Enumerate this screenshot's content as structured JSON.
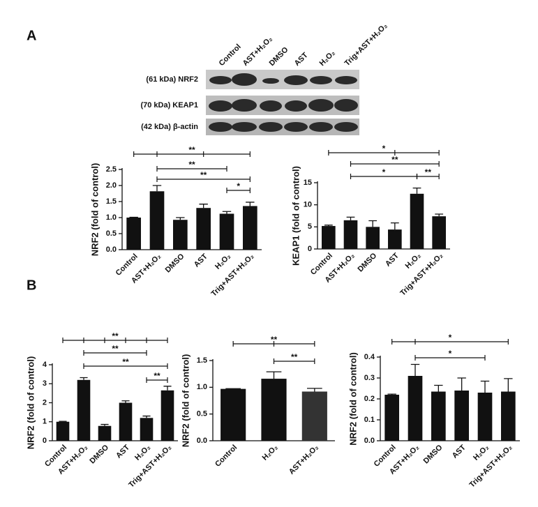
{
  "panel_labels": [
    "A",
    "B"
  ],
  "blot": {
    "lanes": [
      "Control",
      "AST+H₂O₂",
      "DMSO",
      "AST",
      "H₂O₂",
      "Trig+AST+H₂O₂"
    ],
    "rows": [
      "(61 kDa) NRF2",
      "(70 kDa) KEAP1",
      "(42 kDa) β-actin"
    ]
  },
  "chart_data": [
    {
      "type": "bar",
      "ylabel": "NRF2 (fold of control)",
      "color": "#111111",
      "categories": [
        "Control",
        "AST+H₂O₂",
        "DMSO",
        "AST",
        "H₂O₂",
        "Trig+AST+H₂O₂"
      ],
      "values": [
        1.0,
        1.82,
        0.93,
        1.3,
        1.12,
        1.36
      ],
      "errors": [
        0.01,
        0.18,
        0.07,
        0.12,
        0.07,
        0.12
      ],
      "ylim": [
        0,
        2.5
      ],
      "yticks": [
        {
          "value": 0,
          "label": "0.0"
        },
        {
          "value": 0.5,
          "label": "0.5"
        },
        {
          "value": 1,
          "label": "1.0"
        },
        {
          "value": 1.5,
          "label": "1.5"
        },
        {
          "value": 2,
          "label": "2.0"
        },
        {
          "value": 2.5,
          "label": "2.5"
        }
      ],
      "annotations": [
        {
          "text": "**",
          "between": [
            0,
            1,
            3,
            5
          ]
        },
        {
          "text": "**",
          "between": [
            1,
            4
          ]
        },
        {
          "text": "**",
          "between": [
            1,
            5
          ]
        },
        {
          "text": "*",
          "between": [
            4,
            5
          ]
        }
      ]
    },
    {
      "type": "bar",
      "ylabel": "KEAP1 (fold of control)",
      "color": "#111111",
      "categories": [
        "Control",
        "AST+H₂O₂",
        "DMSO",
        "AST",
        "H₂O₂",
        "Trig+AST+H₂O₂"
      ],
      "values": [
        5.2,
        6.5,
        5.0,
        4.4,
        12.5,
        7.4
      ],
      "errors": [
        0.2,
        0.7,
        1.4,
        1.5,
        1.3,
        0.5
      ],
      "ylim": [
        0,
        15
      ],
      "yticks": [
        0,
        5,
        10,
        15
      ],
      "annotations": [
        {
          "text": "*",
          "between": [
            0,
            3,
            5
          ]
        },
        {
          "text": "**",
          "between": [
            1,
            5
          ]
        },
        {
          "text": "*",
          "between": [
            1,
            4
          ]
        },
        {
          "text": "**",
          "between": [
            4,
            5
          ]
        }
      ]
    },
    {
      "type": "bar",
      "ylabel": "NRF2 (fold of control)",
      "color": "#111111",
      "categories": [
        "Control",
        "AST+H₂O₂",
        "DMSO",
        "AST",
        "H₂O₂",
        "Trig+AST+H₂O₂"
      ],
      "values": [
        1.0,
        3.2,
        0.78,
        2.0,
        1.2,
        2.65
      ],
      "errors": [
        0.02,
        0.12,
        0.08,
        0.1,
        0.1,
        0.22
      ],
      "ylim": [
        0,
        4
      ],
      "yticks": [
        0,
        1,
        2,
        3,
        4
      ],
      "annotations": [
        {
          "text": "**",
          "between": [
            0,
            1,
            2,
            3,
            4,
            5
          ]
        },
        {
          "text": "**",
          "between": [
            1,
            4
          ]
        },
        {
          "text": "**",
          "between": [
            1,
            5
          ]
        },
        {
          "text": "**",
          "between": [
            4,
            5
          ]
        }
      ]
    },
    {
      "type": "bar",
      "ylabel": "NRF2 (fold of control)",
      "colors": [
        "#111111",
        "#111111",
        "#333333"
      ],
      "categories": [
        "Control",
        "H₂O₂",
        "AST+H₂O₂"
      ],
      "values": [
        0.97,
        1.16,
        0.92
      ],
      "errors": [
        0.005,
        0.13,
        0.06
      ],
      "ylim": [
        0,
        1.5
      ],
      "yticks": [
        {
          "value": 0,
          "label": "0.0"
        },
        {
          "value": 0.5,
          "label": "0.5"
        },
        {
          "value": 1,
          "label": "1.0"
        },
        {
          "value": 1.5,
          "label": "1.5"
        }
      ],
      "annotations": [
        {
          "text": "**",
          "between": [
            0,
            1,
            2
          ]
        },
        {
          "text": "**",
          "between": [
            1,
            2
          ]
        }
      ]
    },
    {
      "type": "bar",
      "ylabel": "NRF2 (fold of control)",
      "color": "#111111",
      "categories": [
        "Control",
        "AST+H₂O₂",
        "DMSO",
        "AST",
        "H₂O₂",
        "Trig+AST+H₂O₂"
      ],
      "values": [
        0.22,
        0.31,
        0.235,
        0.24,
        0.23,
        0.235
      ],
      "errors": [
        0.003,
        0.055,
        0.03,
        0.06,
        0.055,
        0.062
      ],
      "ylim": [
        0,
        0.4
      ],
      "yticks": [
        {
          "value": 0,
          "label": "0.0"
        },
        0.1,
        0.2,
        0.3,
        0.4
      ],
      "annotations": [
        {
          "text": "*",
          "between": [
            0,
            1,
            5
          ]
        },
        {
          "text": "*",
          "between": [
            1,
            4
          ]
        }
      ]
    }
  ]
}
